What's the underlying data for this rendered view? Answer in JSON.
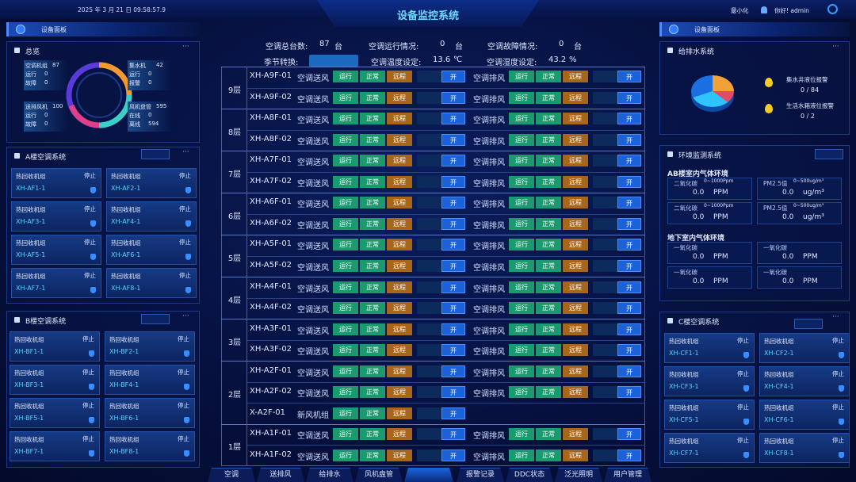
{
  "header": {
    "datetime": "2025 年 3 月 21 日 09:58:57.9",
    "title": "设备监控系统",
    "minimize": "最小化",
    "greeting": "你好! admin"
  },
  "left": {
    "panel_title": "设备面板",
    "overview": {
      "title": "总览",
      "groups": [
        {
          "items": [
            {
              "label": "空调机组",
              "value": 87
            },
            {
              "label": "运行",
              "value": 0
            },
            {
              "label": "故障",
              "value": 0
            }
          ]
        },
        {
          "items": [
            {
              "label": "集水机",
              "value": 42
            },
            {
              "label": "运行",
              "value": 0
            },
            {
              "label": "报警",
              "value": 0
            }
          ]
        },
        {
          "items": [
            {
              "label": "送排风机",
              "value": 100
            },
            {
              "label": "运行",
              "value": 0
            },
            {
              "label": "故障",
              "value": 0
            }
          ]
        },
        {
          "items": [
            {
              "label": "风机盘管",
              "value": 595
            },
            {
              "label": "在线",
              "value": 0
            },
            {
              "label": "离线",
              "value": 594
            }
          ]
        }
      ]
    },
    "systems": [
      {
        "title": "A楼空调系统",
        "cards": [
          {
            "type": "热回收机组",
            "state": "停止",
            "id": "XH-AF1-1"
          },
          {
            "type": "热回收机组",
            "state": "停止",
            "id": "XH-AF2-1"
          },
          {
            "type": "热回收机组",
            "state": "停止",
            "id": "XH-AF3-1"
          },
          {
            "type": "热回收机组",
            "state": "停止",
            "id": "XH-AF4-1"
          },
          {
            "type": "热回收机组",
            "state": "停止",
            "id": "XH-AF5-1"
          },
          {
            "type": "热回收机组",
            "state": "停止",
            "id": "XH-AF6-1"
          },
          {
            "type": "热回收机组",
            "state": "停止",
            "id": "XH-AF7-1"
          },
          {
            "type": "热回收机组",
            "state": "停止",
            "id": "XH-AF8-1"
          }
        ]
      },
      {
        "title": "B楼空调系统",
        "cards": [
          {
            "type": "热回收机组",
            "state": "停止",
            "id": "XH-BF1-1"
          },
          {
            "type": "热回收机组",
            "state": "停止",
            "id": "XH-BF2-1"
          },
          {
            "type": "热回收机组",
            "state": "停止",
            "id": "XH-BF3-1"
          },
          {
            "type": "热回收机组",
            "state": "停止",
            "id": "XH-BF4-1"
          },
          {
            "type": "热回收机组",
            "state": "停止",
            "id": "XH-BF5-1"
          },
          {
            "type": "热回收机组",
            "state": "停止",
            "id": "XH-BF6-1"
          },
          {
            "type": "热回收机组",
            "state": "停止",
            "id": "XH-BF7-1"
          },
          {
            "type": "热回收机组",
            "state": "停止",
            "id": "XH-BF8-1"
          }
        ]
      }
    ]
  },
  "right": {
    "panel_title": "设备面板",
    "water": {
      "title": "给排水系统",
      "alarms": [
        {
          "label": "集水井液位报警",
          "value": "0 / 84"
        },
        {
          "label": "生活水箱液位报警",
          "value": "0 / 2"
        }
      ]
    },
    "env": {
      "title": "环境监测系统",
      "groups": [
        {
          "title": "AB楼室内气体环境",
          "cells": [
            {
              "name": "二氧化碳",
              "range": "0~1000Ppm",
              "value": "0.0",
              "unit": "PPM"
            },
            {
              "name": "PM2.5值",
              "range": "0~500ug/m³",
              "value": "0.0",
              "unit": "ug/m³"
            },
            {
              "name": "二氧化碳",
              "range": "0~1000Ppm",
              "value": "0.0",
              "unit": "PPM"
            },
            {
              "name": "PM2.5值",
              "range": "0~500ug/m³",
              "value": "0.0",
              "unit": "ug/m³"
            }
          ]
        },
        {
          "title": "地下室内气体环境",
          "cells": [
            {
              "name": "一氧化碳",
              "value": "0.0",
              "unit": "PPM"
            },
            {
              "name": "一氧化碳",
              "value": "0.0",
              "unit": "PPM"
            },
            {
              "name": "一氧化碳",
              "value": "0.0",
              "unit": "PPM"
            },
            {
              "name": "一氧化碳",
              "value": "0.0",
              "unit": "PPM"
            }
          ]
        }
      ]
    },
    "system": {
      "title": "C楼空调系统",
      "cards": [
        {
          "type": "热回收机组",
          "state": "停止",
          "id": "XH-CF1-1"
        },
        {
          "type": "热回收机组",
          "state": "停止",
          "id": "XH-CF2-1"
        },
        {
          "type": "热回收机组",
          "state": "停止",
          "id": "XH-CF3-1"
        },
        {
          "type": "热回收机组",
          "state": "停止",
          "id": "XH-CF4-1"
        },
        {
          "type": "热回收机组",
          "state": "停止",
          "id": "XH-CF5-1"
        },
        {
          "type": "热回收机组",
          "state": "停止",
          "id": "XH-CF6-1"
        },
        {
          "type": "热回收机组",
          "state": "停止",
          "id": "XH-CF7-1"
        },
        {
          "type": "热回收机组",
          "state": "停止",
          "id": "XH-CF8-1"
        }
      ]
    }
  },
  "center": {
    "stats": [
      {
        "label": "空调总台数:",
        "value": 87,
        "unit": "台"
      },
      {
        "label": "空调运行情况:",
        "value": 0,
        "unit": "台"
      },
      {
        "label": "空调故障情况:",
        "value": 0,
        "unit": "台"
      },
      {
        "label": "季节转换:"
      },
      {
        "label": "空调温度设定:",
        "value": 13.6,
        "unit": "℃"
      },
      {
        "label": "空调湿度设定:",
        "value": 43.2,
        "unit": "%"
      }
    ],
    "floors": [
      {
        "label": "9层",
        "rows": [
          {
            "id": "XH-A9F-01",
            "units": [
              {
                "name": "空调送风",
                "tags": [
                  "运行",
                  "正常",
                  "远程"
                ],
                "switch": "开"
              },
              {
                "name": "空调排风",
                "tags": [
                  "运行",
                  "正常",
                  "远程"
                ],
                "switch": "开"
              }
            ]
          },
          {
            "id": "XH-A9F-02",
            "units": [
              {
                "name": "空调送风",
                "tags": [
                  "运行",
                  "正常",
                  "远程"
                ],
                "switch": "开"
              },
              {
                "name": "空调排风",
                "tags": [
                  "运行",
                  "正常",
                  "远程"
                ],
                "switch": "开"
              }
            ]
          }
        ]
      },
      {
        "label": "8层",
        "rows": [
          {
            "id": "XH-A8F-01",
            "units": [
              {
                "name": "空调送风",
                "tags": [
                  "运行",
                  "正常",
                  "远程"
                ],
                "switch": "开"
              },
              {
                "name": "空调排风",
                "tags": [
                  "运行",
                  "正常",
                  "远程"
                ],
                "switch": "开"
              }
            ]
          },
          {
            "id": "XH-A8F-02",
            "units": [
              {
                "name": "空调送风",
                "tags": [
                  "运行",
                  "正常",
                  "远程"
                ],
                "switch": "开"
              },
              {
                "name": "空调排风",
                "tags": [
                  "运行",
                  "正常",
                  "远程"
                ],
                "switch": "开"
              }
            ]
          }
        ]
      },
      {
        "label": "7层",
        "rows": [
          {
            "id": "XH-A7F-01",
            "units": [
              {
                "name": "空调送风",
                "tags": [
                  "运行",
                  "正常",
                  "远程"
                ],
                "switch": "开"
              },
              {
                "name": "空调排风",
                "tags": [
                  "运行",
                  "正常",
                  "远程"
                ],
                "switch": "开"
              }
            ]
          },
          {
            "id": "XH-A7F-02",
            "units": [
              {
                "name": "空调送风",
                "tags": [
                  "运行",
                  "正常",
                  "远程"
                ],
                "switch": "开"
              },
              {
                "name": "空调排风",
                "tags": [
                  "运行",
                  "正常",
                  "远程"
                ],
                "switch": "开"
              }
            ]
          }
        ]
      },
      {
        "label": "6层",
        "rows": [
          {
            "id": "XH-A6F-01",
            "units": [
              {
                "name": "空调送风",
                "tags": [
                  "运行",
                  "正常",
                  "远程"
                ],
                "switch": "开"
              },
              {
                "name": "空调排风",
                "tags": [
                  "运行",
                  "正常",
                  "远程"
                ],
                "switch": "开"
              }
            ]
          },
          {
            "id": "XH-A6F-02",
            "units": [
              {
                "name": "空调送风",
                "tags": [
                  "运行",
                  "正常",
                  "远程"
                ],
                "switch": "开"
              },
              {
                "name": "空调排风",
                "tags": [
                  "运行",
                  "正常",
                  "远程"
                ],
                "switch": "开"
              }
            ]
          }
        ]
      },
      {
        "label": "5层",
        "rows": [
          {
            "id": "XH-A5F-01",
            "units": [
              {
                "name": "空调送风",
                "tags": [
                  "运行",
                  "正常",
                  "远程"
                ],
                "switch": "开"
              },
              {
                "name": "空调排风",
                "tags": [
                  "运行",
                  "正常",
                  "远程"
                ],
                "switch": "开"
              }
            ]
          },
          {
            "id": "XH-A5F-02",
            "units": [
              {
                "name": "空调送风",
                "tags": [
                  "运行",
                  "正常",
                  "远程"
                ],
                "switch": "开"
              },
              {
                "name": "空调排风",
                "tags": [
                  "运行",
                  "正常",
                  "远程"
                ],
                "switch": "开"
              }
            ]
          }
        ]
      },
      {
        "label": "4层",
        "rows": [
          {
            "id": "XH-A4F-01",
            "units": [
              {
                "name": "空调送风",
                "tags": [
                  "运行",
                  "正常",
                  "远程"
                ],
                "switch": "开"
              },
              {
                "name": "空调排风",
                "tags": [
                  "运行",
                  "正常",
                  "远程"
                ],
                "switch": "开"
              }
            ]
          },
          {
            "id": "XH-A4F-02",
            "units": [
              {
                "name": "空调送风",
                "tags": [
                  "运行",
                  "正常",
                  "远程"
                ],
                "switch": "开"
              },
              {
                "name": "空调排风",
                "tags": [
                  "运行",
                  "正常",
                  "远程"
                ],
                "switch": "开"
              }
            ]
          }
        ]
      },
      {
        "label": "3层",
        "rows": [
          {
            "id": "XH-A3F-01",
            "units": [
              {
                "name": "空调送风",
                "tags": [
                  "运行",
                  "正常",
                  "远程"
                ],
                "switch": "开"
              },
              {
                "name": "空调排风",
                "tags": [
                  "运行",
                  "正常",
                  "远程"
                ],
                "switch": "开"
              }
            ]
          },
          {
            "id": "XH-A3F-02",
            "units": [
              {
                "name": "空调送风",
                "tags": [
                  "运行",
                  "正常",
                  "远程"
                ],
                "switch": "开"
              },
              {
                "name": "空调排风",
                "tags": [
                  "运行",
                  "正常",
                  "远程"
                ],
                "switch": "开"
              }
            ]
          }
        ]
      },
      {
        "label": "2层",
        "rows": [
          {
            "id": "XH-A2F-01",
            "units": [
              {
                "name": "空调送风",
                "tags": [
                  "运行",
                  "正常",
                  "远程"
                ],
                "switch": "开"
              },
              {
                "name": "空调排风",
                "tags": [
                  "运行",
                  "正常",
                  "远程"
                ],
                "switch": "开"
              }
            ]
          },
          {
            "id": "XH-A2F-02",
            "units": [
              {
                "name": "空调送风",
                "tags": [
                  "运行",
                  "正常",
                  "远程"
                ],
                "switch": "开"
              },
              {
                "name": "空调排风",
                "tags": [
                  "运行",
                  "正常",
                  "远程"
                ],
                "switch": "开"
              }
            ]
          },
          {
            "id": "X-A2F-01",
            "units": [
              {
                "name": "新风机组",
                "tags": [
                  "运行",
                  "正常",
                  "远程"
                ],
                "switch": "开"
              }
            ]
          }
        ]
      },
      {
        "label": "1层",
        "rows": [
          {
            "id": "XH-A1F-01",
            "units": [
              {
                "name": "空调送风",
                "tags": [
                  "运行",
                  "正常",
                  "远程"
                ],
                "switch": "开"
              },
              {
                "name": "空调排风",
                "tags": [
                  "运行",
                  "正常",
                  "远程"
                ],
                "switch": "开"
              }
            ]
          },
          {
            "id": "XH-A1F-02",
            "units": [
              {
                "name": "空调送风",
                "tags": [
                  "运行",
                  "正常",
                  "远程"
                ],
                "switch": "开"
              },
              {
                "name": "空调排风",
                "tags": [
                  "运行",
                  "正常",
                  "远程"
                ],
                "switch": "开"
              }
            ]
          }
        ]
      }
    ]
  },
  "nav": [
    "空调",
    "送排风",
    "给排水",
    "风机盘管",
    "报警记录",
    "DDC状态",
    "泛光照明",
    "用户管理"
  ]
}
